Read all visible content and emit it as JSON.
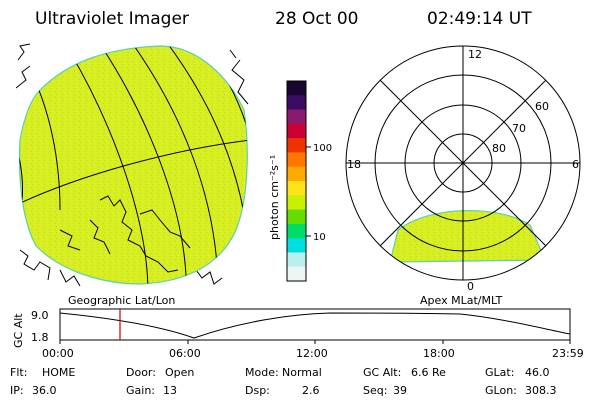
{
  "header": {
    "title": "Ultraviolet Imager",
    "date": "28 Oct 00",
    "time": "02:49:14 UT"
  },
  "left_panel": {
    "caption": "Geographic Lat/Lon",
    "fill_color": "#d8ee20"
  },
  "colorbar": {
    "label": "photon cm⁻²s⁻¹",
    "ticks": [
      "100",
      "10"
    ],
    "colors": [
      "#1a0530",
      "#3a0b63",
      "#8a1a70",
      "#cc0033",
      "#ee3300",
      "#ff7700",
      "#ffaa00",
      "#ffe21a",
      "#c8f000",
      "#66dd00",
      "#00dd66",
      "#00dddd",
      "#bbeeee",
      "#eef5f5"
    ]
  },
  "right_panel": {
    "caption": "Apex MLat/MLT",
    "mlt_labels": [
      "12",
      "18",
      "6",
      "0"
    ],
    "lat_labels": [
      "60",
      "70",
      "80"
    ]
  },
  "orbit_plot": {
    "ylabel": "GC Alt",
    "y_ticks": [
      "9.0",
      "1.8"
    ],
    "x_ticks": [
      "00:00",
      "06:00",
      "12:00",
      "18:00",
      "23:59"
    ],
    "marker_color": "#cc0000"
  },
  "status": {
    "row1": [
      {
        "label": "Flt:",
        "value": "HOME"
      },
      {
        "label": "Door:",
        "value": "Open"
      },
      {
        "label": "Mode:",
        "value": "Normal"
      },
      {
        "label": "GC Alt:",
        "value": "6.6 Re"
      },
      {
        "label": "GLat:",
        "value": "46.0"
      }
    ],
    "row2": [
      {
        "label": "IP:",
        "value": "36.0"
      },
      {
        "label": "Gain:",
        "value": "13"
      },
      {
        "label": "Dsp:",
        "value": "2.6"
      },
      {
        "label": "Seq:",
        "value": "39"
      },
      {
        "label": "GLon:",
        "value": "308.3"
      }
    ]
  }
}
